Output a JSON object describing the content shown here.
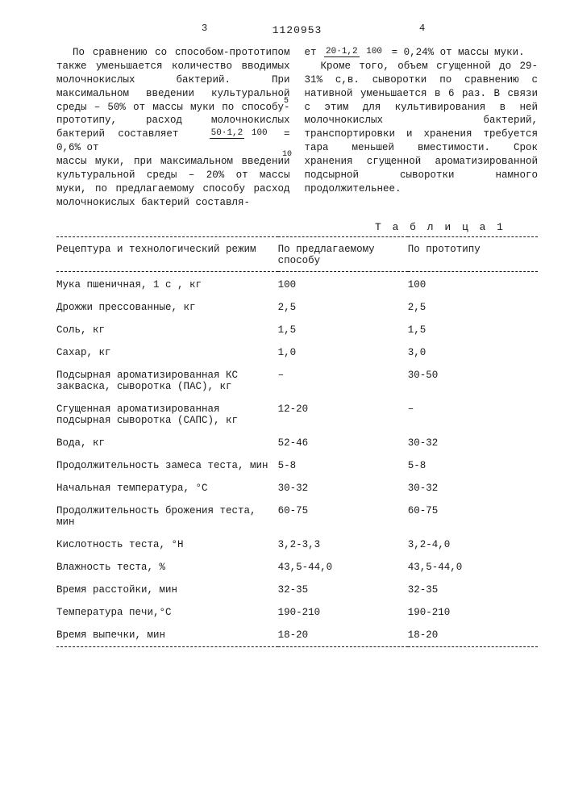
{
  "doc_number": "1120953",
  "page_left": "3",
  "page_right": "4",
  "line_marker_5": "5",
  "line_marker_10": "10",
  "col_left": {
    "p1a": "По сравнению со способом-прототипом также уменьшается количество вводимых молочнокислых бактерий. При максимальном введении культуральной среды – 50% от массы муки по способу-прототипу, расход молочнокислых бактерий составляет ",
    "frac1_num": "50·1,2",
    "frac1_den": "100",
    "p1b": " = 0,6% от",
    "p2": "массы муки, при максимальном введении культуральной среды – 20% от массы муки, по предлагаемому способу расход молочнокислых бактерий составля-"
  },
  "col_right": {
    "p1a": "ет ",
    "frac2_num": "20·1,2",
    "frac2_den": "100",
    "p1b": " = 0,24% от массы муки.",
    "p2": "Кроме того, объем сгущенной до 29-31% с,в. сыворотки по сравнению с нативной уменьшается в 6 раз. В связи с этим для культивирования в ней молочнокислых бактерий, транспортировки и хранения требуется тара меньшей вместимости. Срок хранения сгущенной ароматизированной подсырной сыворотки намного продолжительнее."
  },
  "table": {
    "caption": "Т а б л и ц а  1",
    "headers": [
      "Рецептура и технологический режим",
      "По предлагаемому способу",
      "По прототипу"
    ],
    "rows": [
      [
        "Мука пшеничная, 1 с , кг",
        "100",
        "100"
      ],
      [
        "Дрожжи прессованные, кг",
        "2,5",
        "2,5"
      ],
      [
        "Соль, кг",
        "1,5",
        "1,5"
      ],
      [
        "Сахар, кг",
        "1,0",
        "3,0"
      ],
      [
        "Подсырная ароматизированная КС закваска, сыворотка (ПАС), кг",
        "–",
        "30-50"
      ],
      [
        "Сгущенная ароматизированная подсырная сыворотка (САПС), кг",
        "12-20",
        "–"
      ],
      [
        "Вода, кг",
        "52-46",
        "30-32"
      ],
      [
        "Продолжительность замеса теста, мин",
        "5-8",
        "5-8"
      ],
      [
        "Начальная температура, °С",
        "30-32",
        "30-32"
      ],
      [
        "Продолжительность брожения теста, мин",
        "60-75",
        "60-75"
      ],
      [
        "Кислотность теста, °Н",
        "3,2-3,3",
        "3,2-4,0"
      ],
      [
        "Влажность теста, %",
        "43,5-44,0",
        "43,5-44,0"
      ],
      [
        "Время расстойки, мин",
        "32-35",
        "32-35"
      ],
      [
        "Температура печи,°С",
        "190-210",
        "190-210"
      ],
      [
        "Время выпечки, мин",
        "18-20",
        "18-20"
      ]
    ]
  }
}
